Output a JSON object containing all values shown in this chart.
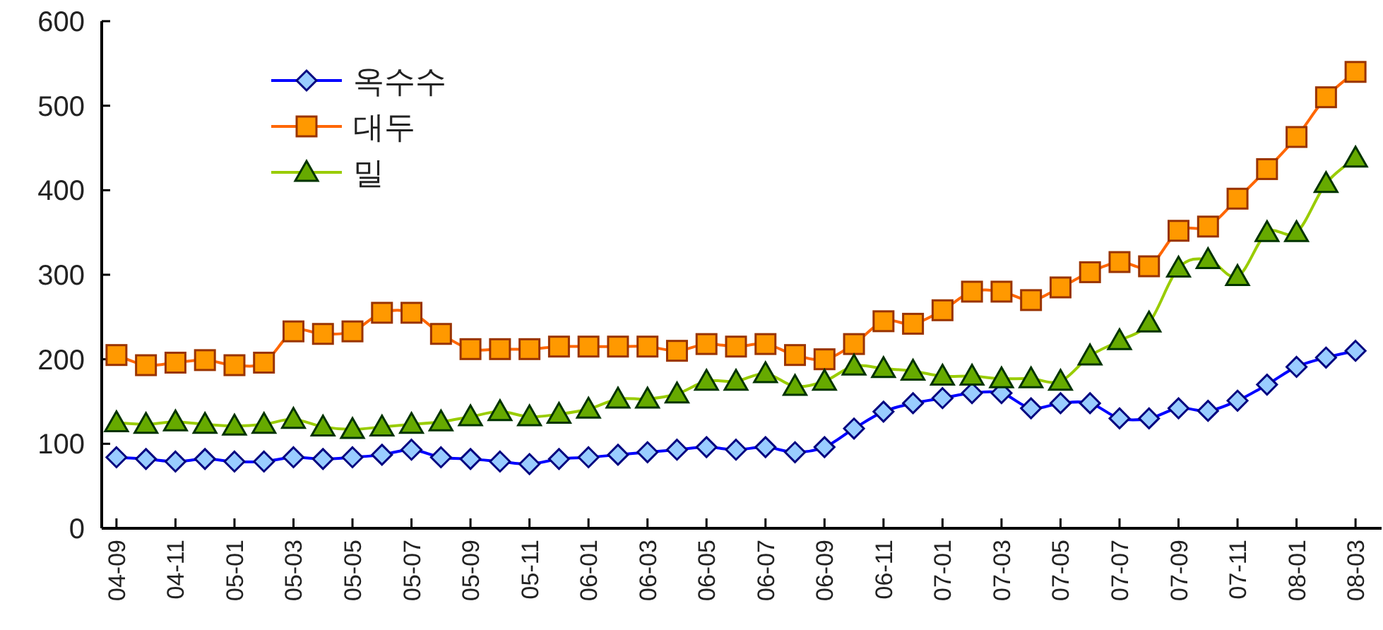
{
  "chart_data": {
    "type": "line",
    "categories": [
      "04-09",
      null,
      "04-11",
      null,
      "05-01",
      null,
      "05-03",
      null,
      "05-05",
      null,
      "05-07",
      null,
      "05-09",
      null,
      "05-11",
      null,
      "06-01",
      null,
      "06-03",
      null,
      "06-05",
      null,
      "06-07",
      null,
      "06-09",
      null,
      "06-11",
      null,
      "07-01",
      null,
      "07-03",
      null,
      "07-05",
      null,
      "07-07",
      null,
      "07-09",
      null,
      "07-11",
      null,
      "08-01",
      null,
      "08-03"
    ],
    "series": [
      {
        "name": "옥수수",
        "color": "#0000ff",
        "marker": "diamond",
        "values": [
          84,
          82,
          79,
          82,
          79,
          79,
          84,
          82,
          84,
          87,
          93,
          84,
          82,
          79,
          76,
          82,
          84,
          87,
          90,
          93,
          96,
          93,
          96,
          90,
          96,
          118,
          138,
          148,
          154,
          160,
          160,
          142,
          148,
          148,
          130,
          130,
          142,
          139,
          151,
          170,
          191,
          202,
          210
        ]
      },
      {
        "name": "대두",
        "color": "#ff6600",
        "marker": "square",
        "values": [
          205,
          193,
          196,
          199,
          193,
          196,
          233,
          230,
          233,
          255,
          255,
          230,
          212,
          212,
          212,
          215,
          215,
          215,
          215,
          210,
          218,
          215,
          218,
          205,
          200,
          218,
          245,
          242,
          258,
          280,
          280,
          270,
          285,
          303,
          315,
          310,
          352,
          357,
          390,
          425,
          463,
          510,
          540
        ]
      },
      {
        "name": "밀",
        "color": "#99cc00",
        "marker": "triangle",
        "values": [
          125,
          123,
          126,
          123,
          121,
          123,
          129,
          120,
          117,
          120,
          123,
          126,
          132,
          138,
          132,
          135,
          141,
          153,
          153,
          159,
          174,
          174,
          183,
          168,
          174,
          192,
          189,
          186,
          180,
          180,
          177,
          177,
          174,
          204,
          222,
          243,
          308,
          318,
          298,
          350,
          350,
          408,
          438
        ]
      }
    ],
    "ylim": [
      0,
      600
    ],
    "yticks": [
      0,
      100,
      200,
      300,
      400,
      500,
      600
    ],
    "grid": false,
    "legend": "top left"
  }
}
